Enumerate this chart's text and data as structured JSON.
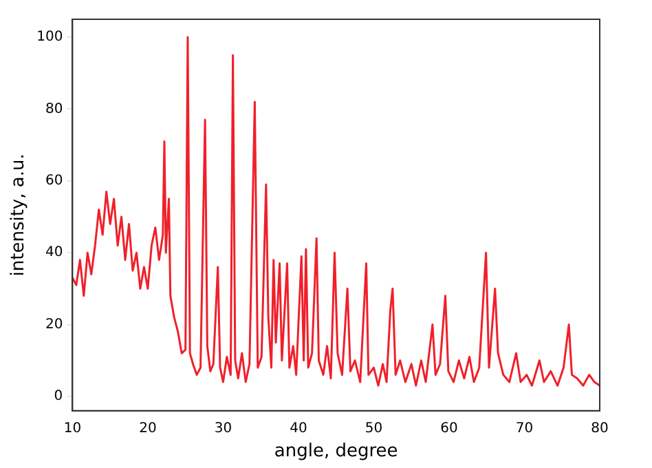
{
  "chart_data": {
    "type": "line",
    "xlabel": "angle, degree",
    "ylabel": "intensity, a.u.",
    "x": [
      10,
      10.5,
      11,
      11.5,
      12,
      12.5,
      13,
      13.5,
      14,
      14.5,
      15,
      15.5,
      16,
      16.5,
      17,
      17.5,
      18,
      18.5,
      19,
      19.5,
      20,
      20.5,
      21,
      21.5,
      22,
      22.2,
      22.4,
      22.8,
      23,
      23.5,
      24,
      24.5,
      25,
      25.3,
      25.6,
      26,
      26.5,
      27,
      27.6,
      27.9,
      28.3,
      28.7,
      29.3,
      29.6,
      30,
      30.5,
      31,
      31.3,
      31.6,
      32,
      32.5,
      33,
      33.5,
      34.2,
      34.6,
      35.1,
      35.7,
      36,
      36.4,
      36.7,
      37,
      37.5,
      37.8,
      38.5,
      38.8,
      39.3,
      39.7,
      40.4,
      40.7,
      41,
      41.3,
      41.8,
      42.4,
      42.7,
      43.3,
      43.8,
      44.3,
      44.8,
      45.2,
      45.8,
      46.5,
      46.9,
      47.5,
      48.2,
      49,
      49.3,
      50,
      50.6,
      51.2,
      51.7,
      52.2,
      52.5,
      52.9,
      53.5,
      54.2,
      55,
      55.6,
      56.3,
      56.9,
      57.8,
      58.2,
      58.8,
      59.5,
      59.9,
      60.6,
      61.3,
      62,
      62.7,
      63.3,
      64,
      64.9,
      65.3,
      66.1,
      66.5,
      67.2,
      68,
      68.9,
      69.5,
      70.3,
      71,
      72,
      72.6,
      73.5,
      74.4,
      75.2,
      75.9,
      76.3,
      77,
      77.8,
      78.6,
      79.3,
      80
    ],
    "series": [
      {
        "color": "#f0202a",
        "values": [
          33,
          31,
          38,
          28,
          40,
          34,
          42,
          52,
          45,
          57,
          48,
          55,
          42,
          50,
          38,
          48,
          35,
          40,
          30,
          36,
          30,
          42,
          47,
          38,
          45,
          71,
          40,
          55,
          28,
          22,
          18,
          12,
          13,
          100,
          12,
          9,
          6,
          8,
          77,
          14,
          7,
          9,
          36,
          8,
          4,
          11,
          6,
          95,
          10,
          5,
          12,
          4,
          9,
          82,
          8,
          11,
          59,
          22,
          8,
          38,
          15,
          37,
          10,
          37,
          8,
          14,
          6,
          39,
          10,
          41,
          8,
          12,
          44,
          10,
          6,
          14,
          5,
          40,
          12,
          6,
          30,
          7,
          10,
          4,
          37,
          6,
          8,
          3,
          9,
          4,
          24,
          30,
          6,
          10,
          4,
          9,
          3,
          10,
          4,
          20,
          6,
          9,
          28,
          7,
          4,
          10,
          5,
          11,
          4,
          8,
          40,
          8,
          30,
          12,
          6,
          4,
          12,
          4,
          6,
          3,
          10,
          4,
          7,
          3,
          8,
          20,
          6,
          5,
          3,
          6,
          4,
          3
        ]
      }
    ],
    "xlim": [
      10,
      80
    ],
    "xticks": [
      10,
      20,
      30,
      40,
      50,
      60,
      70,
      80
    ],
    "ylim": [
      -4,
      105
    ],
    "yticks": [
      0,
      20,
      40,
      60,
      80,
      100
    ],
    "grid": false,
    "legend": false,
    "marker": "none",
    "line_style": "solid"
  }
}
